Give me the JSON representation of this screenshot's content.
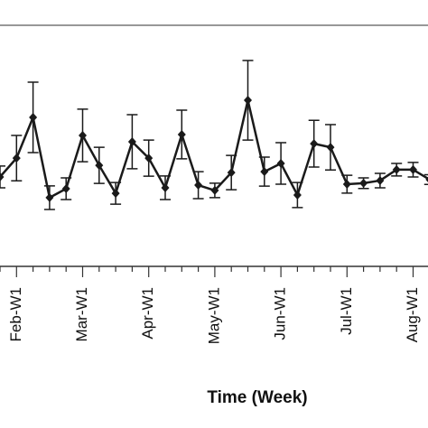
{
  "chart_data": {
    "type": "line",
    "x_label": "Time (Week)",
    "categories": [
      null,
      "Feb-W1",
      null,
      null,
      null,
      "Mar-W1",
      null,
      null,
      null,
      "Apr-W1",
      null,
      null,
      null,
      "May-W1",
      null,
      null,
      null,
      "Jun-W1",
      null,
      null,
      null,
      "Jul-W1",
      null,
      null,
      null,
      "Aug-W1",
      null
    ],
    "series": [
      {
        "color": "#1a1a1a",
        "values": [
          37.1,
          44.9,
          61.8,
          28.5,
          32.2,
          54.3,
          41.9,
          30.3,
          51.7,
          44.9,
          32.6,
          54.7,
          33.7,
          31.5,
          38.9,
          68.9,
          39.3,
          42.7,
          29.6,
          50.9,
          49.4,
          34.1,
          34.5,
          35.6,
          40.1,
          40.1,
          36.0
        ],
        "errors": [
          4.5,
          9.4,
          14.6,
          4.9,
          4.5,
          10.9,
          7.5,
          4.5,
          11.2,
          7.5,
          4.9,
          10.1,
          5.6,
          3.0,
          7.1,
          16.5,
          6.0,
          8.6,
          5.2,
          9.7,
          9.4,
          3.7,
          2.2,
          3.0,
          2.6,
          3.0,
          2.0
        ]
      }
    ],
    "ylim": [
      0,
      100
    ]
  }
}
